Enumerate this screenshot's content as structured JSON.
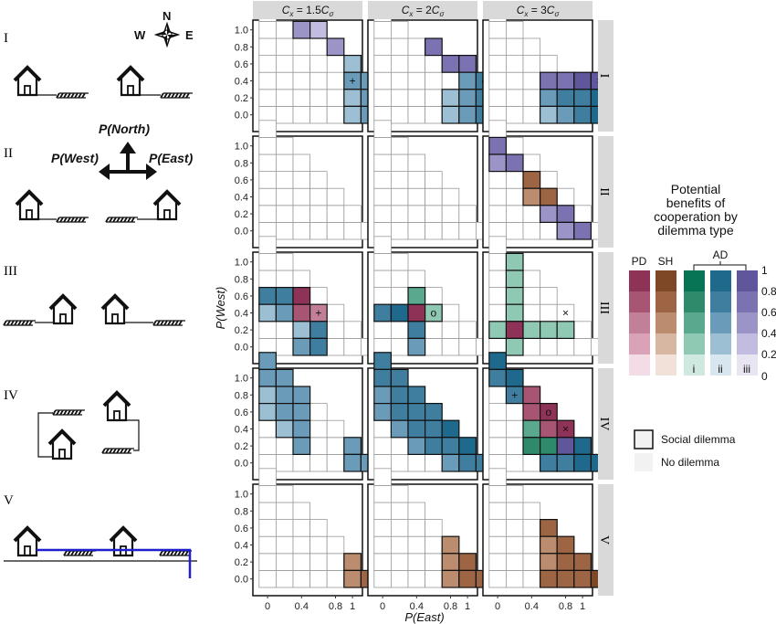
{
  "chart_data": {
    "type": "heatmap",
    "columns": [
      {
        "prefix": "C",
        "sub": "x",
        "eq": " = 1.5",
        "tail": "C",
        "tailsub": "σ"
      },
      {
        "prefix": "C",
        "sub": "x",
        "eq": " = 2",
        "tail": "C",
        "tailsub": "σ"
      },
      {
        "prefix": "C",
        "sub": "x",
        "eq": " = 3",
        "tail": "C",
        "tailsub": "σ"
      }
    ],
    "rows": [
      "I",
      "II",
      "III",
      "IV",
      "V"
    ],
    "xlabel": "P(East)",
    "ylabel": "P(West)",
    "xticks": [
      "0",
      "0.4",
      "0.8",
      "1"
    ],
    "yticks": [
      "0.0",
      "0.2",
      "0.4",
      "0.6",
      "0.8",
      "1.0"
    ],
    "colors": {
      "PD": [
        "#f3dce6",
        "#d9a2b7",
        "#c27f98",
        "#a85574",
        "#8e3357"
      ],
      "SH": [
        "#f1e1d8",
        "#d8b7a2",
        "#bb8c6d",
        "#9d6543",
        "#7e4726"
      ],
      "AD_i": [
        "#cfe8e0",
        "#8fc8b3",
        "#5aa88d",
        "#2f8a6c",
        "#087456"
      ],
      "AD_ii": [
        "#d8e6ef",
        "#9dbfd4",
        "#6a9cb9",
        "#3f7e9f",
        "#1f6a8c"
      ],
      "AD_iii": [
        "#e7e5f2",
        "#c2bde0",
        "#9b95c7",
        "#7a72b1",
        "#5f569c"
      ]
    },
    "panels": [
      [
        {
          "cells": [
            [
              2,
              5,
              "AD_iii",
              0.55
            ],
            [
              3,
              5,
              "AD_iii",
              0.35
            ],
            [
              4,
              4,
              "AD_iii",
              0.45
            ],
            [
              5,
              3,
              "AD_ii",
              0.3
            ],
            [
              5,
              2,
              "AD_ii",
              0.4
            ],
            [
              6,
              2,
              "AD_ii",
              0.5
            ],
            [
              5,
              1,
              "AD_ii",
              0.3
            ],
            [
              5,
              0,
              "AD_ii",
              0.25
            ],
            [
              6,
              1,
              "AD_ii",
              0.4
            ],
            [
              6,
              0,
              "AD_ii",
              0.55
            ]
          ],
          "markers": [
            [
              5,
              2,
              "+"
            ]
          ]
        },
        {
          "cells": [
            [
              3,
              4,
              "AD_iii",
              0.7
            ],
            [
              4,
              3,
              "AD_iii",
              0.85
            ],
            [
              5,
              3,
              "AD_iii",
              0.85
            ],
            [
              5,
              2,
              "AD_ii",
              0.6
            ],
            [
              6,
              2,
              "AD_ii",
              0.75
            ],
            [
              4,
              1,
              "AD_ii",
              0.35
            ],
            [
              5,
              1,
              "AD_ii",
              0.55
            ],
            [
              6,
              1,
              "AD_ii",
              0.7
            ],
            [
              4,
              0,
              "AD_ii",
              0.25
            ],
            [
              5,
              0,
              "AD_ii",
              0.4
            ],
            [
              6,
              0,
              "AD_ii",
              0.7
            ],
            [
              7,
              0,
              "AD_ii",
              0.85
            ]
          ],
          "markers": [
            [
              6,
              2,
              "o"
            ]
          ]
        },
        {
          "cells": [
            [
              3,
              2,
              "AD_iii",
              0.65
            ],
            [
              4,
              2,
              "AD_iii",
              0.85
            ],
            [
              5,
              2,
              "AD_iii",
              0.95
            ],
            [
              6,
              2,
              "AD_iii",
              0.95
            ],
            [
              3,
              1,
              "AD_ii",
              0.55
            ],
            [
              4,
              1,
              "AD_ii",
              0.7
            ],
            [
              5,
              1,
              "AD_ii",
              0.85
            ],
            [
              6,
              1,
              "AD_ii",
              0.9
            ],
            [
              3,
              0,
              "AD_ii",
              0.25
            ],
            [
              4,
              0,
              "AD_ii",
              0.6
            ],
            [
              5,
              0,
              "AD_ii",
              0.8
            ],
            [
              6,
              0,
              "AD_ii",
              0.95
            ]
          ],
          "markers": [
            [
              6,
              2,
              "×"
            ]
          ]
        }
      ],
      [
        {
          "cells": [],
          "markers": []
        },
        {
          "cells": [],
          "markers": []
        },
        {
          "cells": [
            [
              0,
              5,
              "AD_iii",
              0.7
            ],
            [
              0,
              4,
              "AD_iii",
              0.5
            ],
            [
              1,
              4,
              "AD_iii",
              0.7
            ],
            [
              2,
              3,
              "SH",
              0.8
            ],
            [
              2,
              2,
              "SH",
              0.5
            ],
            [
              3,
              2,
              "SH",
              0.8
            ],
            [
              3,
              1,
              "AD_iii",
              0.45
            ],
            [
              4,
              1,
              "AD_iii",
              0.7
            ],
            [
              4,
              0,
              "AD_iii",
              0.6
            ],
            [
              5,
              0,
              "AD_iii",
              0.75
            ]
          ],
          "markers": []
        }
      ],
      [
        {
          "cells": [
            [
              0,
              3,
              "AD_ii",
              0.7
            ],
            [
              1,
              3,
              "AD_ii",
              0.85
            ],
            [
              2,
              3,
              "PD",
              0.9
            ],
            [
              0,
              2,
              "AD_ii",
              0.25
            ],
            [
              1,
              2,
              "AD_ii",
              0.55
            ],
            [
              2,
              2,
              "PD",
              0.85
            ],
            [
              3,
              2,
              "PD",
              0.6
            ],
            [
              3,
              1,
              "AD_ii",
              0.8
            ],
            [
              2,
              1,
              "AD_ii",
              0.35
            ],
            [
              2,
              0,
              "AD_ii",
              0.4
            ],
            [
              3,
              0,
              "AD_ii",
              0.7
            ]
          ],
          "markers": [
            [
              3,
              2,
              "+"
            ]
          ]
        },
        {
          "cells": [
            [
              0,
              2,
              "AD_ii",
              0.65
            ],
            [
              1,
              2,
              "AD_ii",
              0.9
            ],
            [
              2,
              2,
              "PD",
              0.9
            ],
            [
              2,
              3,
              "AD_i",
              0.6
            ],
            [
              2,
              1,
              "AD_ii",
              0.7
            ],
            [
              2,
              0,
              "AD_ii",
              0.5
            ],
            [
              3,
              2,
              "AD_i",
              0.35
            ]
          ],
          "markers": [
            [
              3,
              2,
              "o"
            ]
          ]
        },
        {
          "cells": [
            [
              1,
              5,
              "AD_i",
              0.25
            ],
            [
              1,
              4,
              "AD_i",
              0.2
            ],
            [
              1,
              3,
              "AD_i",
              0.2
            ],
            [
              1,
              2,
              "AD_i",
              0.15
            ],
            [
              1,
              1,
              "PD",
              0.95
            ],
            [
              0,
              1,
              "AD_i",
              0.15
            ],
            [
              2,
              1,
              "AD_i",
              0.15
            ],
            [
              3,
              1,
              "AD_i",
              0.15
            ],
            [
              4,
              1,
              "AD_i",
              0.15
            ],
            [
              1,
              0,
              "AD_i",
              0.15
            ]
          ],
          "markers": [
            [
              4,
              2,
              "×"
            ]
          ]
        }
      ],
      [
        {
          "cells": [
            [
              0,
              6,
              "AD_ii",
              0.4
            ],
            [
              0,
              5,
              "AD_ii",
              0.45
            ],
            [
              1,
              5,
              "AD_ii",
              0.5
            ],
            [
              0,
              4,
              "AD_ii",
              0.35
            ],
            [
              1,
              4,
              "AD_ii",
              0.4
            ],
            [
              2,
              4,
              "AD_ii",
              0.45
            ],
            [
              0,
              3,
              "AD_ii",
              0.25
            ],
            [
              1,
              3,
              "AD_ii",
              0.45
            ],
            [
              2,
              3,
              "AD_ii",
              0.6
            ],
            [
              1,
              2,
              "AD_ii",
              0.35
            ],
            [
              2,
              2,
              "AD_ii",
              0.5
            ],
            [
              2,
              1,
              "AD_ii",
              0.55
            ],
            [
              5,
              1,
              "AD_ii",
              0.5
            ],
            [
              5,
              0,
              "AD_ii",
              0.6
            ],
            [
              6,
              0,
              "AD_ii",
              0.55
            ]
          ],
          "markers": []
        },
        {
          "cells": [
            [
              0,
              6,
              "AD_ii",
              0.85
            ],
            [
              0,
              5,
              "AD_ii",
              0.75
            ],
            [
              1,
              5,
              "AD_ii",
              0.8
            ],
            [
              0,
              4,
              "AD_ii",
              0.6
            ],
            [
              1,
              4,
              "AD_ii",
              0.75
            ],
            [
              2,
              4,
              "AD_ii",
              0.8
            ],
            [
              0,
              3,
              "AD_ii",
              0.5
            ],
            [
              1,
              3,
              "AD_ii",
              0.7
            ],
            [
              2,
              3,
              "AD_ii",
              0.8
            ],
            [
              3,
              3,
              "AD_ii",
              0.85
            ],
            [
              1,
              2,
              "AD_ii",
              0.55
            ],
            [
              2,
              2,
              "AD_ii",
              0.75
            ],
            [
              3,
              2,
              "AD_ii",
              0.85
            ],
            [
              4,
              2,
              "AD_ii",
              0.9
            ],
            [
              2,
              1,
              "AD_ii",
              0.55
            ],
            [
              3,
              1,
              "AD_ii",
              0.7
            ],
            [
              4,
              1,
              "AD_ii",
              0.85
            ],
            [
              5,
              1,
              "AD_ii",
              0.9
            ],
            [
              4,
              0,
              "AD_ii",
              0.5
            ],
            [
              5,
              0,
              "AD_ii",
              0.7
            ],
            [
              6,
              0,
              "AD_ii",
              0.85
            ]
          ],
          "markers": []
        },
        {
          "cells": [
            [
              0,
              6,
              "AD_ii",
              0.95
            ],
            [
              0,
              5,
              "AD_ii",
              0.85
            ],
            [
              1,
              5,
              "AD_ii",
              0.95
            ],
            [
              1,
              4,
              "AD_ii",
              0.7
            ],
            [
              2,
              4,
              "PD",
              0.75
            ],
            [
              2,
              3,
              "PD",
              0.8
            ],
            [
              3,
              3,
              "PD",
              0.9
            ],
            [
              2,
              2,
              "AD_i",
              0.6
            ],
            [
              3,
              2,
              "PD",
              0.85
            ],
            [
              4,
              2,
              "PD",
              0.9
            ],
            [
              2,
              1,
              "AD_i",
              0.65
            ],
            [
              3,
              1,
              "AD_i",
              0.8
            ],
            [
              4,
              1,
              "AD_iii",
              0.9
            ],
            [
              5,
              1,
              "AD_ii",
              0.9
            ],
            [
              3,
              0,
              "AD_ii",
              0.75
            ],
            [
              4,
              0,
              "AD_ii",
              0.8
            ],
            [
              5,
              0,
              "AD_ii",
              0.9
            ],
            [
              6,
              0,
              "AD_ii",
              0.95
            ]
          ],
          "markers": [
            [
              1,
              4,
              "+"
            ],
            [
              3,
              3,
              "o"
            ],
            [
              4,
              2,
              "×"
            ]
          ]
        }
      ],
      [
        {
          "cells": [
            [
              5,
              1,
              "SH",
              0.6
            ],
            [
              5,
              0,
              "SH",
              0.55
            ],
            [
              6,
              0,
              "SH",
              0.75
            ]
          ],
          "markers": []
        },
        {
          "cells": [
            [
              4,
              2,
              "SH",
              0.5
            ],
            [
              4,
              1,
              "SH",
              0.55
            ],
            [
              5,
              1,
              "SH",
              0.7
            ],
            [
              4,
              0,
              "SH",
              0.6
            ],
            [
              5,
              0,
              "SH",
              0.75
            ],
            [
              6,
              0,
              "SH",
              0.85
            ]
          ],
          "markers": []
        },
        {
          "cells": [
            [
              3,
              3,
              "SH",
              0.7
            ],
            [
              3,
              2,
              "SH",
              0.55
            ],
            [
              4,
              2,
              "SH",
              0.8
            ],
            [
              3,
              1,
              "SH",
              0.6
            ],
            [
              4,
              1,
              "SH",
              0.75
            ],
            [
              5,
              1,
              "SH",
              0.85
            ],
            [
              3,
              0,
              "SH",
              0.65
            ],
            [
              4,
              0,
              "SH",
              0.8
            ],
            [
              5,
              0,
              "SH",
              0.85
            ],
            [
              6,
              0,
              "SH",
              0.95
            ]
          ],
          "markers": []
        }
      ]
    ],
    "legend": {
      "title": [
        "Potential",
        "benefits of",
        "cooperation by",
        "dilemma type"
      ],
      "groups": [
        "PD",
        "SH",
        "AD"
      ],
      "sublabels": [
        "i",
        "ii",
        "iii"
      ],
      "scale": [
        "1",
        "0.8",
        "0.6",
        "0.4",
        "0.2",
        "0"
      ],
      "social_dilemma": "Social dilemma",
      "no_dilemma": "No dilemma"
    }
  },
  "diagram": {
    "compass": {
      "n": "N",
      "s": "",
      "e": "E",
      "w": "W"
    },
    "p_north": "P(North)",
    "p_west": "P(West)",
    "p_east": "P(East)",
    "scenario_labels": [
      "I",
      "II",
      "III",
      "IV",
      "V"
    ]
  }
}
